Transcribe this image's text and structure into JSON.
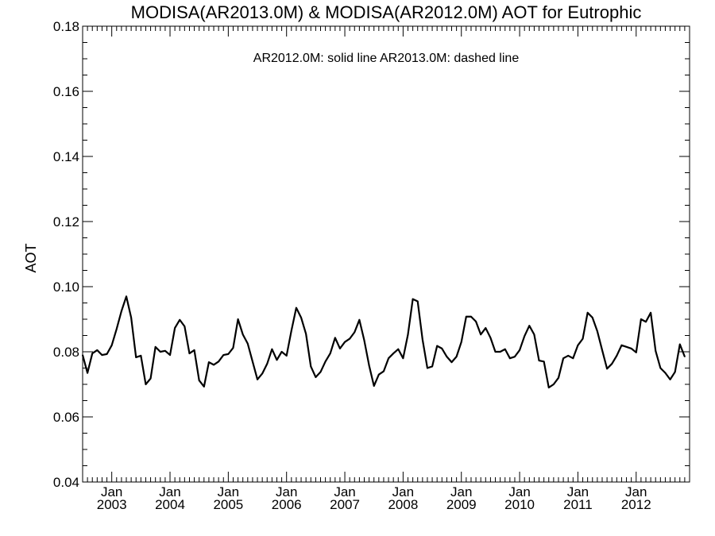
{
  "chart_data": {
    "type": "line",
    "title": "MODISA(AR2013.0M) & MODISA(AR2012.0M)  AOT for Eutrophic",
    "annotation": "AR2012.0M: solid line   AR2013.0M: dashed line",
    "ylabel": "AOT",
    "xlabel": "",
    "ylim": [
      0.04,
      0.18
    ],
    "yticks": [
      "0.04",
      "0.06",
      "0.08",
      "0.10",
      "0.12",
      "0.14",
      "0.16",
      "0.18"
    ],
    "xlim": [
      "2002-07",
      "2012-12"
    ],
    "xticks": [
      {
        "month": "Jan",
        "year": "2003",
        "date": "2003-01"
      },
      {
        "month": "Jan",
        "year": "2004",
        "date": "2004-01"
      },
      {
        "month": "Jan",
        "year": "2005",
        "date": "2005-01"
      },
      {
        "month": "Jan",
        "year": "2006",
        "date": "2006-01"
      },
      {
        "month": "Jan",
        "year": "2007",
        "date": "2007-01"
      },
      {
        "month": "Jan",
        "year": "2008",
        "date": "2008-01"
      },
      {
        "month": "Jan",
        "year": "2009",
        "date": "2009-01"
      },
      {
        "month": "Jan",
        "year": "2010",
        "date": "2010-01"
      },
      {
        "month": "Jan",
        "year": "2011",
        "date": "2011-01"
      },
      {
        "month": "Jan",
        "year": "2012",
        "date": "2012-01"
      }
    ],
    "grid": false,
    "series": [
      {
        "style": "solid",
        "start": "2002-07",
        "values": [
          0.079,
          0.0735,
          0.0795,
          0.0805,
          0.079,
          0.0793,
          0.082,
          0.087,
          0.0925,
          0.097,
          0.0905,
          0.0783,
          0.0788,
          0.07,
          0.0718,
          0.0815,
          0.08,
          0.0803,
          0.079,
          0.0873,
          0.0898,
          0.0878,
          0.0795,
          0.0805,
          0.0712,
          0.0693,
          0.0768,
          0.076,
          0.077,
          0.079,
          0.0793,
          0.0812,
          0.09,
          0.0853,
          0.0825,
          0.077,
          0.0715,
          0.0733,
          0.0763,
          0.0808,
          0.0775,
          0.08,
          0.0788,
          0.0865,
          0.0935,
          0.0905,
          0.0855,
          0.0755,
          0.0722,
          0.0738,
          0.077,
          0.0795,
          0.0843,
          0.081,
          0.083,
          0.084,
          0.086,
          0.0898,
          0.0835,
          0.0758,
          0.0695,
          0.073,
          0.074,
          0.078,
          0.0795,
          0.0808,
          0.078,
          0.0853,
          0.0962,
          0.0955,
          0.0838,
          0.075,
          0.0755,
          0.0818,
          0.081,
          0.0785,
          0.0768,
          0.0785,
          0.083,
          0.0908,
          0.0908,
          0.0893,
          0.0853,
          0.0873,
          0.0843,
          0.08,
          0.08,
          0.0808,
          0.078,
          0.0785,
          0.0805,
          0.0848,
          0.088,
          0.0853,
          0.0773,
          0.077,
          0.069,
          0.07,
          0.072,
          0.078,
          0.0788,
          0.078,
          0.082,
          0.084,
          0.092,
          0.0905,
          0.0863,
          0.0805,
          0.0748,
          0.0763,
          0.0788,
          0.082,
          0.0815,
          0.081,
          0.0798,
          0.09,
          0.0892,
          0.092,
          0.0803,
          0.075,
          0.0735,
          0.0715,
          0.0738,
          0.0823,
          0.0785
        ]
      }
    ]
  }
}
